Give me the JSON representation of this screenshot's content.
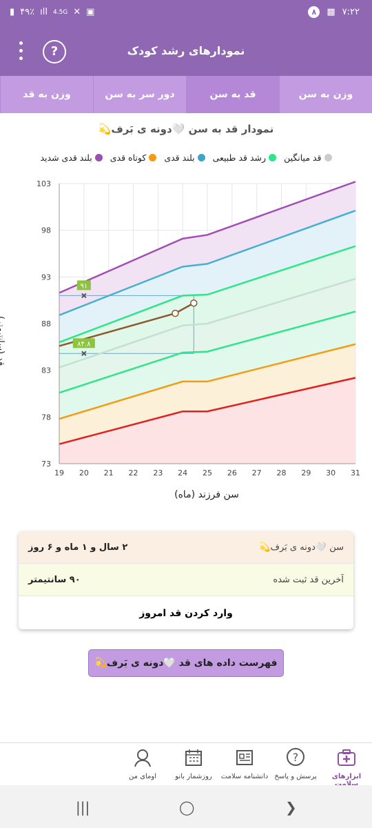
{
  "status_bar": {
    "time": "۷:۲۲",
    "notification_count": "۸",
    "battery": "۴۹٪",
    "network": "4.5G"
  },
  "app_bar": {
    "title": "نمودارهای رشد کودک"
  },
  "tabs": [
    {
      "label": "وزن به قد",
      "active": false
    },
    {
      "label": "دور سر به سن",
      "active": false
    },
    {
      "label": "قد به سن",
      "active": true
    },
    {
      "label": "وزن به سن",
      "active": false
    }
  ],
  "chart_title": "نمودار قد به سن 🤍دونه ی بَرف💫",
  "legend": [
    {
      "label": "بلند قدی شدید",
      "color": "#9b4fb0"
    },
    {
      "label": "کوتاه قدی",
      "color": "#f39c12"
    },
    {
      "label": "بلند قدی",
      "color": "#3aa6c9"
    },
    {
      "label": "رشد قد طبیعی",
      "color": "#2ee58a"
    },
    {
      "label": "قد میانگین",
      "color": "#cccccc"
    }
  ],
  "chart_data": {
    "type": "line",
    "xlabel": "سن فرزند (ماه)",
    "ylabel": "قد (سانتیمتر)",
    "xlim": [
      19,
      31
    ],
    "ylim": [
      73,
      103
    ],
    "xticks": [
      19,
      20,
      21,
      22,
      23,
      24,
      25,
      26,
      27,
      28,
      29,
      30,
      31
    ],
    "yticks": [
      73,
      78,
      83,
      88,
      93,
      98,
      103
    ],
    "series": [
      {
        "name": "بلند قدی شدید",
        "color": "#a04fb3",
        "fill": "#f1e2f4",
        "points": [
          [
            19,
            91.3
          ],
          [
            24,
            97.1
          ],
          [
            25,
            97.5
          ],
          [
            31,
            103.2
          ]
        ]
      },
      {
        "name": "بلند قدی",
        "color": "#46afd1",
        "fill": "#e2f2f8",
        "points": [
          [
            19,
            88.9
          ],
          [
            24,
            94.1
          ],
          [
            25,
            94.4
          ],
          [
            31,
            100.1
          ]
        ]
      },
      {
        "name": "رشد قد طبیعی",
        "color": "#2ee58a",
        "fill": "#dff8ea",
        "points": [
          [
            19,
            86.0
          ],
          [
            24,
            91.0
          ],
          [
            25,
            91.1
          ],
          [
            31,
            96.3
          ]
        ]
      },
      {
        "name": "قد میانگین",
        "color": "#c5dfd0",
        "fill": "#e4f6ec",
        "points": [
          [
            19,
            83.3
          ],
          [
            24,
            87.8
          ],
          [
            25,
            88.0
          ],
          [
            31,
            92.8
          ]
        ]
      },
      {
        "name": "",
        "color": "#2ee58a",
        "fill": "#e1f9ec",
        "points": [
          [
            19,
            80.6
          ],
          [
            24,
            84.9
          ],
          [
            25,
            85.0
          ],
          [
            31,
            89.3
          ]
        ]
      },
      {
        "name": "کوتاه قدی",
        "color": "#f39c12",
        "fill": "#fdf0d9",
        "points": [
          [
            19,
            77.8
          ],
          [
            24,
            81.8
          ],
          [
            25,
            81.8
          ],
          [
            31,
            85.8
          ]
        ]
      },
      {
        "name": "",
        "color": "#e02020",
        "fill": "#fde3e3",
        "points": [
          [
            19,
            75.1
          ],
          [
            24,
            78.6
          ],
          [
            25,
            78.6
          ],
          [
            31,
            82.2
          ]
        ]
      }
    ],
    "child_series": {
      "color": "#8a5a30",
      "points": [
        [
          19,
          85.6
        ],
        [
          23.7,
          89.1
        ],
        [
          24.45,
          90.2
        ]
      ]
    },
    "markers": [
      {
        "x": 20,
        "y": 91.0,
        "label": "۹۱"
      },
      {
        "x": 20,
        "y": 84.8,
        "label": "۸۴.۸"
      }
    ],
    "highlight_box": {
      "x": [
        19,
        24.45
      ],
      "y": [
        84.8,
        91.0
      ]
    }
  },
  "info_card": {
    "age_label": "سن 🤍دونه ی بَرف💫",
    "age_value": "۲ سال و ۱ ماه و ۶ روز",
    "height_label": "آخرین قد ثبت شده",
    "height_value": "۹۰ سانتیمتر",
    "enter_button": "وارد کردن قد امروز"
  },
  "list_button": "فهرست داده های قد 🤍دونه ی بَرف💫",
  "bottom_nav": [
    {
      "label": "ابزارهای سلامت",
      "icon": "first-aid-kit-icon",
      "active": true
    },
    {
      "label": "پرسش و پاسخ",
      "icon": "question-bubble-icon",
      "active": false
    },
    {
      "label": "دانشنامه سلامت",
      "icon": "newspaper-icon",
      "active": false
    },
    {
      "label": "روزشمار بانو",
      "icon": "calendar-icon",
      "active": false
    },
    {
      "label": "اومای من",
      "icon": "avatar-icon",
      "active": false
    }
  ]
}
